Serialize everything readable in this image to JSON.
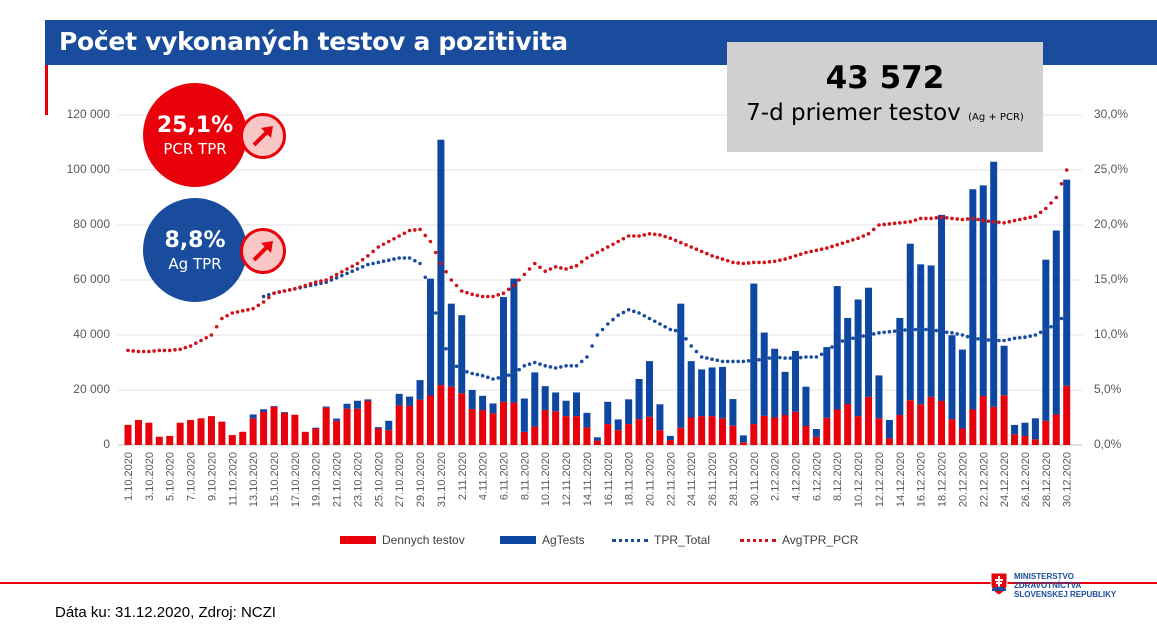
{
  "title": "Počet vykonaných testov a pozitivita",
  "avg_box": {
    "value": "43 572",
    "label": "7-d priemer testov",
    "label_small": "(Ag + PCR)"
  },
  "pcr_bubble": {
    "value": "25,1%",
    "label": "PCR TPR",
    "trend": "up-arrow-icon",
    "color": "#e8000b"
  },
  "ag_bubble": {
    "value": "8,8%",
    "label": "Ag TPR",
    "trend": "up-arrow-icon",
    "color": "#1a4c9e"
  },
  "footer": "Dáta ku: 31.12.2020, Zdroj: NCZI",
  "logo": {
    "lines": [
      "MINISTERSTVO",
      "ZDRAVOTNÍCTVA",
      "SLOVENSKEJ REPUBLIKY"
    ]
  },
  "chart_data": {
    "type": "bar",
    "stacked": true,
    "title": "Počet vykonaných testov a pozitivita",
    "x_start": "1.10.2020",
    "x_end": "30.12.2020",
    "xticks": [
      "1.10.2020",
      "3.10.2020",
      "5.10.2020",
      "7.10.2020",
      "9.10.2020",
      "11.10.2020",
      "13.10.2020",
      "15.10.2020",
      "17.10.2020",
      "19.10.2020",
      "21.10.2020",
      "23.10.2020",
      "25.10.2020",
      "27.10.2020",
      "29.10.2020",
      "31.10.2020",
      "2.11.2020",
      "4.11.2020",
      "6.11.2020",
      "8.11.2020",
      "10.11.2020",
      "12.11.2020",
      "14.11.2020",
      "16.11.2020",
      "18.11.2020",
      "20.11.2020",
      "22.11.2020",
      "24.11.2020",
      "26.11.2020",
      "28.11.2020",
      "30.11.2020",
      "2.12.2020",
      "4.12.2020",
      "6.12.2020",
      "8.12.2020",
      "10.12.2020",
      "12.12.2020",
      "14.12.2020",
      "16.12.2020",
      "18.12.2020",
      "20.12.2020",
      "22.12.2020",
      "24.12.2020",
      "26.12.2020",
      "28.12.2020",
      "30.12.2020"
    ],
    "y_left": {
      "ylim": [
        0,
        120000
      ],
      "ticks": [
        "0",
        "20 000",
        "40 000",
        "60 000",
        "80 000",
        "100 000",
        "120 000"
      ]
    },
    "y_right": {
      "ylim": [
        0,
        30
      ],
      "ticks": [
        "0,0%",
        "5,0%",
        "10,0%",
        "15,0%",
        "20,0%",
        "25,0%",
        "30,0%"
      ]
    },
    "grid": true,
    "legend_position": "bottom",
    "series": [
      {
        "name": "Dennych testov",
        "kind": "bar",
        "color": "#e8000b",
        "values": [
          7300,
          9100,
          8100,
          3000,
          3300,
          8100,
          9100,
          9700,
          10500,
          8500,
          3600,
          4800,
          9700,
          12000,
          13900,
          11700,
          11000,
          4800,
          6000,
          13600,
          8800,
          13200,
          13200,
          16000,
          6000,
          5400,
          14400,
          14200,
          16500,
          18000,
          21800,
          21200,
          18800,
          13100,
          12700,
          11500,
          15700,
          15400,
          4800,
          6700,
          12700,
          12300,
          10500,
          10500,
          6400,
          1600,
          7600,
          5400,
          7600,
          9400,
          10300,
          5400,
          1800,
          6300,
          10000,
          10500,
          10500,
          9700,
          7000,
          1000,
          7600,
          10600,
          10000,
          10900,
          12100,
          6900,
          3000,
          9900,
          12900,
          14900,
          10500,
          17500,
          9700,
          2400,
          10900,
          16300,
          14800,
          17500,
          16000,
          9400,
          6000,
          12900,
          17800,
          13900,
          18100,
          3900,
          3300,
          2100,
          8800,
          11100,
          21500
        ]
      },
      {
        "name": "AgTests",
        "kind": "bar",
        "color": "#0d47a1",
        "values": [
          0,
          0,
          0,
          0,
          0,
          0,
          0,
          0,
          0,
          0,
          0,
          0,
          1400,
          1000,
          300,
          300,
          0,
          0,
          300,
          400,
          800,
          1800,
          2900,
          600,
          500,
          3400,
          4200,
          3400,
          7100,
          42500,
          89200,
          30200,
          28400,
          6900,
          5200,
          3600,
          38100,
          45100,
          12100,
          19700,
          8700,
          6800,
          5600,
          8600,
          5300,
          1200,
          8100,
          3900,
          9000,
          14600,
          20200,
          9400,
          1500,
          45100,
          20500,
          17000,
          17700,
          18700,
          9700,
          2500,
          51100,
          30300,
          25000,
          15700,
          22100,
          14300,
          2800,
          25700,
          44900,
          31300,
          42400,
          39700,
          15600,
          6700,
          35300,
          56900,
          50900,
          47800,
          67700,
          30500,
          28700,
          80100,
          76600,
          89100,
          18000,
          3400,
          4800,
          7600,
          58600,
          66900,
          75000
        ]
      },
      {
        "name": "TPR_Total",
        "kind": "dotted-line",
        "axis": "right",
        "color": "#1a4c9e",
        "values": [
          null,
          null,
          null,
          null,
          null,
          null,
          null,
          null,
          null,
          null,
          null,
          null,
          null,
          13.5,
          13.8,
          14.0,
          14.2,
          14.4,
          14.6,
          14.8,
          15.2,
          15.6,
          16.0,
          16.4,
          16.6,
          16.8,
          17.0,
          17.0,
          16.5,
          14.0,
          10.0,
          7.5,
          6.8,
          6.5,
          6.3,
          6.0,
          6.2,
          6.5,
          7.2,
          7.5,
          7.2,
          7.0,
          7.2,
          7.2,
          8.0,
          10.0,
          11.0,
          11.8,
          12.3,
          12.0,
          11.5,
          11.0,
          10.5,
          10.3,
          9.0,
          8.0,
          7.8,
          7.6,
          7.6,
          7.6,
          7.7,
          7.8,
          8.0,
          7.9,
          7.9,
          8.0,
          8.0,
          8.5,
          9.3,
          9.6,
          9.8,
          10.0,
          10.2,
          10.3,
          10.4,
          10.5,
          10.5,
          10.5,
          10.3,
          10.2,
          10.0,
          9.7,
          9.6,
          9.5,
          9.5,
          9.7,
          9.8,
          10.0,
          10.5,
          11.0,
          12.0
        ]
      },
      {
        "name": "AvgTPR_PCR",
        "kind": "dotted-line",
        "axis": "right",
        "color": "#d0121b",
        "values": [
          8.6,
          8.5,
          8.5,
          8.6,
          8.6,
          8.7,
          9.0,
          9.5,
          10.0,
          11.5,
          12.0,
          12.2,
          12.4,
          13.0,
          13.8,
          14.0,
          14.2,
          14.5,
          14.8,
          15.0,
          15.5,
          16.0,
          16.5,
          17.2,
          18.0,
          18.5,
          19.0,
          19.5,
          19.6,
          18.5,
          16.5,
          15.0,
          14.0,
          13.7,
          13.5,
          13.5,
          13.8,
          14.5,
          15.5,
          16.5,
          15.8,
          16.2,
          16.0,
          16.3,
          17.0,
          17.5,
          18.0,
          18.5,
          19.0,
          19.0,
          19.2,
          19.1,
          18.8,
          18.4,
          18.0,
          17.6,
          17.2,
          16.9,
          16.6,
          16.5,
          16.6,
          16.6,
          16.7,
          16.9,
          17.2,
          17.5,
          17.7,
          17.9,
          18.2,
          18.5,
          18.8,
          19.2,
          20.0,
          20.1,
          20.2,
          20.3,
          20.6,
          20.6,
          20.7,
          20.6,
          20.5,
          20.6,
          20.4,
          20.3,
          20.2,
          20.4,
          20.6,
          20.8,
          21.5,
          22.5,
          25.0
        ]
      }
    ]
  }
}
